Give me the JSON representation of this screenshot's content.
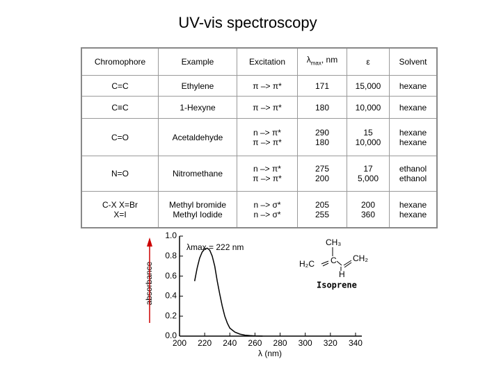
{
  "title": "UV-vis spectroscopy",
  "table": {
    "header": [
      "Chromophore",
      "Example",
      "Excitation",
      {
        "symbol": "λ",
        "sub": "max",
        "rest": ", nm"
      },
      "ε",
      "Solvent"
    ],
    "rows": [
      [
        [
          "C=C"
        ],
        [
          "Ethylene"
        ],
        [
          "π –> π*"
        ],
        [
          "171"
        ],
        [
          "15,000"
        ],
        [
          "hexane"
        ]
      ],
      [
        [
          "C≡C"
        ],
        [
          "1-Hexyne"
        ],
        [
          "π –> π*"
        ],
        [
          "180"
        ],
        [
          "10,000"
        ],
        [
          "hexane"
        ]
      ],
      [
        [
          "C=O"
        ],
        [
          "Acetaldehyde"
        ],
        [
          "n –> π*",
          "π –> π*"
        ],
        [
          "290",
          "180"
        ],
        [
          "15",
          "10,000"
        ],
        [
          "hexane",
          "hexane"
        ]
      ],
      [
        [
          "N=O"
        ],
        [
          "Nitromethane"
        ],
        [
          "n –> π*",
          "π –> π*"
        ],
        [
          "275",
          "200"
        ],
        [
          "17",
          "5,000"
        ],
        [
          "ethanol",
          "ethanol"
        ]
      ],
      [
        [
          "C-X  X=Br",
          "X=I"
        ],
        [
          "Methyl bromide",
          "Methyl Iodide"
        ],
        [
          "n –> σ*",
          "n –> σ*"
        ],
        [
          "205",
          "255"
        ],
        [
          "200",
          "360"
        ],
        [
          "hexane",
          "hexane"
        ]
      ]
    ]
  },
  "chart_data": {
    "type": "line",
    "ylabel": "absorbance",
    "xlabel": "λ (nm)",
    "annotation": "λmax = 222 nm",
    "molecule": {
      "ch3": "CH₃",
      "h2c": "H₂C",
      "c": "C",
      "ch2": "CH₂",
      "h": "H",
      "name": "Isoprene"
    },
    "x": [
      212,
      214,
      216,
      218,
      220,
      222,
      224,
      226,
      228,
      230,
      232,
      234,
      236,
      238,
      240,
      244,
      248,
      252,
      256,
      260,
      266
    ],
    "values": [
      0.55,
      0.68,
      0.78,
      0.84,
      0.87,
      0.88,
      0.86,
      0.8,
      0.7,
      0.55,
      0.42,
      0.3,
      0.2,
      0.13,
      0.08,
      0.04,
      0.02,
      0.01,
      0.005,
      0.002,
      0
    ],
    "color": "#000000",
    "xlim": [
      200,
      345
    ],
    "ylim": [
      0,
      1
    ],
    "xticks": [
      200,
      220,
      240,
      260,
      280,
      300,
      320,
      340
    ],
    "yticks": [
      {
        "value": 0,
        "label": "0.0"
      },
      0.2,
      0.4,
      0.6,
      0.8,
      {
        "value": 1,
        "label": "1.0"
      }
    ]
  }
}
